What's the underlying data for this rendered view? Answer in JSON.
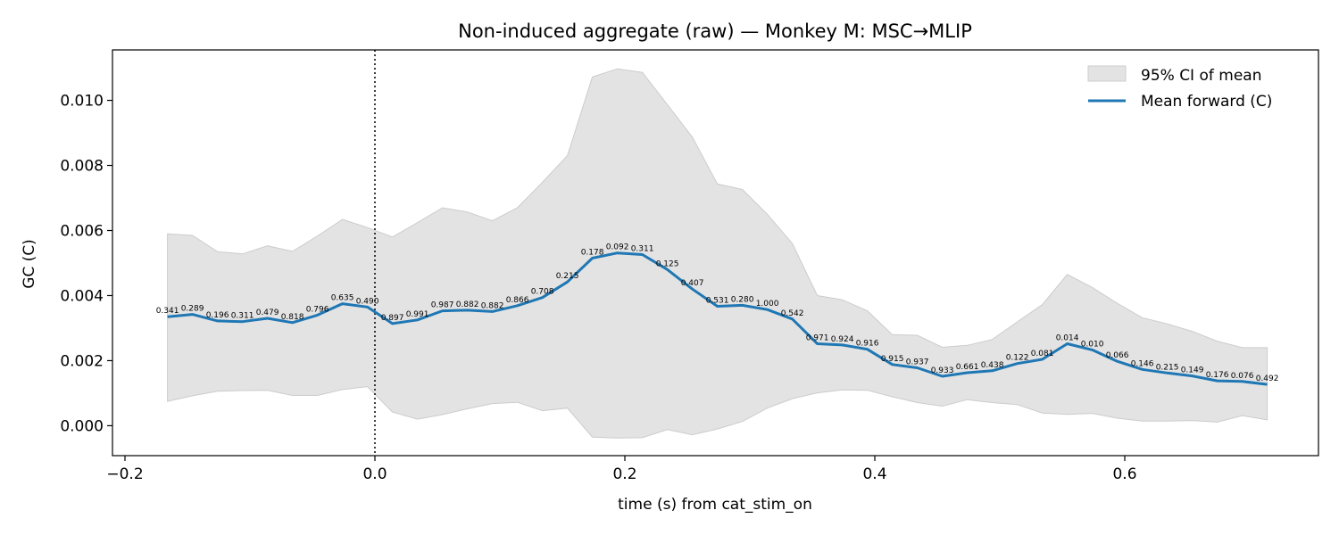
{
  "chart_data": {
    "type": "line",
    "title": "Non-induced aggregate (raw) — Monkey M: MSC→MLIP",
    "xlabel": "time (s) from cat_stim_on",
    "ylabel": "GC (C)",
    "xlim": [
      -0.21,
      0.755
    ],
    "ylim": [
      -0.00092,
      0.01155
    ],
    "xticks": [
      -0.2,
      0.0,
      0.2,
      0.4,
      0.6
    ],
    "xtick_labels": [
      "−0.2",
      "0.0",
      "0.2",
      "0.4",
      "0.6"
    ],
    "yticks": [
      0.0,
      0.002,
      0.004,
      0.006,
      0.008,
      0.01
    ],
    "ytick_labels": [
      "0.000",
      "0.002",
      "0.004",
      "0.006",
      "0.008",
      "0.010"
    ],
    "grid": false,
    "legend_position": "top-right",
    "reference_line": {
      "x": 0.0,
      "style": "dotted"
    },
    "colors": {
      "mean_line": "#1f77b4",
      "ci_fill": "#e3e3e3",
      "ci_edge": "#cccccc"
    },
    "x": [
      -0.166,
      -0.146,
      -0.126,
      -0.106,
      -0.086,
      -0.066,
      -0.046,
      -0.026,
      -0.006,
      0.014,
      0.034,
      0.054,
      0.074,
      0.094,
      0.114,
      0.134,
      0.154,
      0.174,
      0.194,
      0.214,
      0.234,
      0.254,
      0.274,
      0.294,
      0.314,
      0.334,
      0.354,
      0.374,
      0.394,
      0.414,
      0.434,
      0.454,
      0.474,
      0.494,
      0.514,
      0.534,
      0.554,
      0.574,
      0.594,
      0.614,
      0.634,
      0.654,
      0.674,
      0.694,
      0.714
    ],
    "series": [
      {
        "name": "Mean forward (C)",
        "values": [
          0.00335,
          0.00342,
          0.00322,
          0.0032,
          0.0033,
          0.00317,
          0.0034,
          0.00375,
          0.00365,
          0.00314,
          0.00325,
          0.00353,
          0.00355,
          0.00351,
          0.00369,
          0.00394,
          0.00442,
          0.00515,
          0.00531,
          0.00526,
          0.0048,
          0.0042,
          0.00367,
          0.0037,
          0.00357,
          0.00328,
          0.00252,
          0.00248,
          0.00235,
          0.00188,
          0.00178,
          0.00152,
          0.00163,
          0.00169,
          0.00191,
          0.00204,
          0.00252,
          0.00233,
          0.00198,
          0.00173,
          0.00162,
          0.00153,
          0.00138,
          0.00136,
          0.00127
        ],
        "point_labels": [
          "0.341",
          "0.289",
          "0.196",
          "0.311",
          "0.479",
          "0.818",
          "0.796",
          "0.635",
          "0.490",
          "0.897",
          "0.991",
          "0.987",
          "0.882",
          "0.882",
          "0.866",
          "0.708",
          "0.215",
          "0.178",
          "0.092",
          "0.311",
          "0.125",
          "0.407",
          "0.531",
          "0.280",
          "1.000",
          "0.542",
          "0.971",
          "0.924",
          "0.916",
          "0.915",
          "0.937",
          "0.933",
          "0.661",
          "0.438",
          "0.122",
          "0.081",
          "0.014",
          "0.010",
          "0.066",
          "0.146",
          "0.215",
          "0.149",
          "0.176",
          "0.076",
          "0.492"
        ]
      },
      {
        "name": "95% CI of mean",
        "upper": [
          0.0059,
          0.00585,
          0.00535,
          0.00528,
          0.00553,
          0.00536,
          0.00583,
          0.00634,
          0.00609,
          0.0058,
          0.00624,
          0.0067,
          0.00657,
          0.0063,
          0.0067,
          0.00748,
          0.0083,
          0.01072,
          0.01097,
          0.01086,
          0.00987,
          0.00887,
          0.00743,
          0.00726,
          0.0065,
          0.0056,
          0.004,
          0.00387,
          0.00353,
          0.0028,
          0.00278,
          0.00241,
          0.00247,
          0.00265,
          0.00319,
          0.00372,
          0.00465,
          0.00425,
          0.00376,
          0.00332,
          0.00313,
          0.0029,
          0.0026,
          0.0024,
          0.0024
        ],
        "lower": [
          0.00075,
          0.00092,
          0.00106,
          0.00108,
          0.00109,
          0.00093,
          0.00093,
          0.00111,
          0.0012,
          0.00042,
          0.0002,
          0.00034,
          0.00052,
          0.00068,
          0.00072,
          0.00046,
          0.00054,
          -0.00035,
          -0.00038,
          -0.00037,
          -0.00012,
          -0.00028,
          -0.0001,
          0.00013,
          0.00054,
          0.00083,
          0.00101,
          0.0011,
          0.00109,
          0.00089,
          0.00071,
          0.0006,
          0.0008,
          0.00071,
          0.00065,
          0.00039,
          0.00035,
          0.00038,
          0.00023,
          0.00014,
          0.00014,
          0.00016,
          0.00011,
          0.00031,
          0.00018
        ]
      }
    ]
  }
}
